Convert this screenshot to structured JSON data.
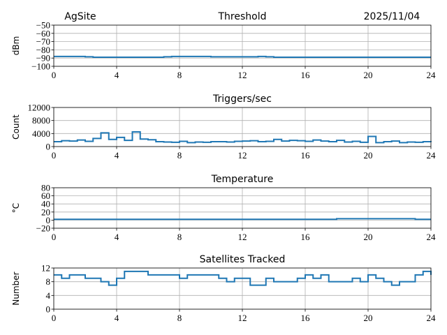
{
  "header": {
    "site": "AgSite",
    "date": "2025/11/04"
  },
  "colors": {
    "line": "#1f77b4",
    "grid": "#b0b0b0"
  },
  "chart_data": [
    {
      "type": "line",
      "title": "Threshold",
      "ylabel": "dBm",
      "ylim": [
        -100,
        -50
      ],
      "yticks": [
        -100,
        -90,
        -80,
        -70,
        -60,
        -50
      ],
      "ytick_labels": [
        "−100",
        "−90",
        "−80",
        "−70",
        "−60",
        "−50"
      ],
      "xlim": [
        0,
        24
      ],
      "xticks": [
        0,
        4,
        8,
        12,
        16,
        20,
        24
      ],
      "xtick_labels": [
        "0",
        "4",
        "8",
        "12",
        "16",
        "20",
        "24"
      ],
      "grid": true,
      "x_step": 0.5,
      "values": [
        -88,
        -88,
        -88,
        -88,
        -88.5,
        -89,
        -89,
        -89,
        -89,
        -89,
        -89,
        -89,
        -89,
        -89,
        -88.5,
        -88,
        -88,
        -88,
        -88,
        -88,
        -88.5,
        -88.5,
        -88.5,
        -88.5,
        -88.5,
        -88.5,
        -88,
        -88.5,
        -89,
        -89,
        -89,
        -89,
        -89,
        -89,
        -89,
        -89,
        -89,
        -89,
        -89,
        -89,
        -89,
        -89,
        -89,
        -89,
        -89,
        -89,
        -89,
        -89,
        -89
      ]
    },
    {
      "type": "line",
      "title": "Triggers/sec",
      "ylabel": "Count",
      "ylim": [
        0,
        12000
      ],
      "yticks": [
        0,
        4000,
        8000,
        12000
      ],
      "ytick_labels": [
        "0",
        "4000",
        "8000",
        "12000"
      ],
      "xlim": [
        0,
        24
      ],
      "xticks": [
        0,
        4,
        8,
        12,
        16,
        20,
        24
      ],
      "xtick_labels": [
        "0",
        "4",
        "8",
        "12",
        "16",
        "20",
        "24"
      ],
      "grid": true,
      "x_step": 0.5,
      "values": [
        1500,
        1800,
        1700,
        2000,
        1600,
        2500,
        4200,
        2200,
        2800,
        1900,
        4500,
        2300,
        2100,
        1500,
        1400,
        1300,
        1600,
        1200,
        1400,
        1300,
        1500,
        1500,
        1400,
        1600,
        1700,
        1800,
        1500,
        1600,
        2200,
        1700,
        1900,
        1800,
        1600,
        2000,
        1700,
        1500,
        1900,
        1400,
        1600,
        1300,
        3100,
        1200,
        1500,
        1700,
        1200,
        1400,
        1300,
        1500,
        1400
      ]
    },
    {
      "type": "line",
      "title": "Temperature",
      "ylabel": "°C",
      "ylim": [
        -20,
        80
      ],
      "yticks": [
        -20,
        0,
        20,
        40,
        60,
        80
      ],
      "ytick_labels": [
        "−20",
        "0",
        "20",
        "40",
        "60",
        "80"
      ],
      "xlim": [
        0,
        24
      ],
      "xticks": [
        0,
        4,
        8,
        12,
        16,
        20,
        24
      ],
      "xtick_labels": [
        "0",
        "4",
        "8",
        "12",
        "16",
        "20",
        "24"
      ],
      "grid": true,
      "x_step": 0.5,
      "values": [
        2,
        2,
        2,
        2,
        2,
        2,
        2,
        2,
        2,
        2,
        2,
        2,
        2,
        2,
        2,
        2,
        2,
        2,
        2,
        2,
        2,
        2,
        2,
        2,
        2,
        2,
        2,
        2,
        2,
        2,
        2,
        2,
        2,
        2,
        2,
        2,
        3.5,
        3.5,
        3.5,
        3.5,
        3.5,
        3.5,
        3.5,
        3.5,
        3.5,
        3.5,
        2,
        2,
        2
      ]
    },
    {
      "type": "line",
      "title": "Satellites Tracked",
      "ylabel": "Number",
      "ylim": [
        0,
        12
      ],
      "yticks": [
        0,
        4,
        8,
        12
      ],
      "ytick_labels": [
        "0",
        "4",
        "8",
        "12"
      ],
      "xlim": [
        0,
        24
      ],
      "xticks": [
        0,
        4,
        8,
        12,
        16,
        20,
        24
      ],
      "xtick_labels": [
        "0",
        "4",
        "8",
        "12",
        "16",
        "20",
        "24"
      ],
      "grid": true,
      "x_step": 0.5,
      "values": [
        10,
        9,
        10,
        10,
        9,
        9,
        8,
        7,
        9,
        11,
        11,
        11,
        10,
        10,
        10,
        10,
        9,
        10,
        10,
        10,
        10,
        9,
        8,
        9,
        9,
        7,
        7,
        9,
        8,
        8,
        8,
        9,
        10,
        9,
        10,
        8,
        8,
        8,
        9,
        8,
        10,
        9,
        8,
        7,
        8,
        8,
        10,
        11,
        10
      ]
    }
  ]
}
